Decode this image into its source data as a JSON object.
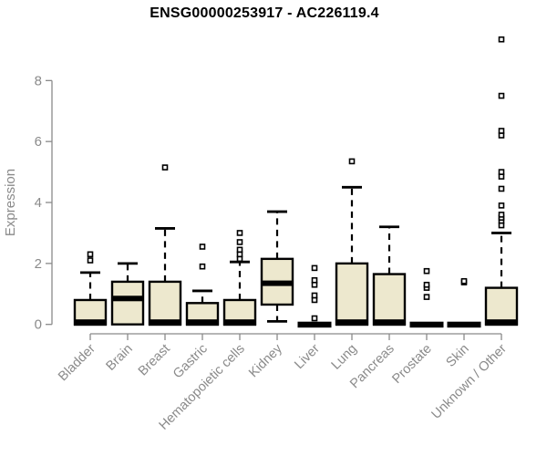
{
  "title": "ENSG00000253917 - AC226119.4",
  "colors": {
    "box_fill": "#ede8ce",
    "box_stroke": "#000000",
    "median": "#000000",
    "whisker": "#000000",
    "outlier_stroke": "#000000",
    "outlier_fill": "#ffffff",
    "axis": "#8a8a8a",
    "tick_label": "#8a8a8a",
    "title_color": "#000000",
    "background": "#ffffff"
  },
  "chart_data": {
    "type": "boxplot",
    "title": "ENSG00000253917 - AC226119.4",
    "xlabel": "",
    "ylabel": "Expression",
    "ylim": [
      0,
      9.5
    ],
    "yticks": [
      0,
      2,
      4,
      6,
      8
    ],
    "grid": false,
    "legend": "none",
    "categories": [
      "Bladder",
      "Brain",
      "Breast",
      "Gastric",
      "Hematopoietic cells",
      "Kidney",
      "Liver",
      "Lung",
      "Pancreas",
      "Prostate",
      "Skin",
      "Unknown / Other"
    ],
    "series": [
      {
        "name": "Bladder",
        "q1": 0,
        "median": 0,
        "q3": 0.8,
        "whisker_low": 0,
        "whisker_high": 1.7,
        "outliers": [
          2.1,
          2.3
        ]
      },
      {
        "name": "Brain",
        "q1": 0,
        "median": 0.85,
        "q3": 1.4,
        "whisker_low": 0,
        "whisker_high": 2.0,
        "outliers": []
      },
      {
        "name": "Breast",
        "q1": 0,
        "median": 0,
        "q3": 1.4,
        "whisker_low": 0,
        "whisker_high": 3.15,
        "outliers": [
          5.15
        ]
      },
      {
        "name": "Gastric",
        "q1": 0,
        "median": 0,
        "q3": 0.7,
        "whisker_low": 0,
        "whisker_high": 1.1,
        "outliers": [
          1.9,
          2.55
        ]
      },
      {
        "name": "Hematopoietic cells",
        "q1": 0,
        "median": 0,
        "q3": 0.8,
        "whisker_low": 0,
        "whisker_high": 2.05,
        "outliers": [
          2.15,
          2.3,
          2.45,
          2.7,
          3.0
        ]
      },
      {
        "name": "Kidney",
        "q1": 0.65,
        "median": 1.35,
        "q3": 2.15,
        "whisker_low": 0.1,
        "whisker_high": 3.7,
        "outliers": []
      },
      {
        "name": "Liver",
        "q1": 0,
        "median": 0,
        "q3": 0,
        "whisker_low": 0,
        "whisker_high": 0,
        "outliers": [
          0.2,
          0.8,
          0.95,
          1.3,
          1.45,
          1.85
        ]
      },
      {
        "name": "Lung",
        "q1": 0,
        "median": 0,
        "q3": 2.0,
        "whisker_low": 0,
        "whisker_high": 4.5,
        "outliers": [
          5.35
        ]
      },
      {
        "name": "Pancreas",
        "q1": 0,
        "median": 0,
        "q3": 1.65,
        "whisker_low": 0,
        "whisker_high": 3.2,
        "outliers": []
      },
      {
        "name": "Prostate",
        "q1": 0,
        "median": 0,
        "q3": 0,
        "whisker_low": 0,
        "whisker_high": 0,
        "outliers": [
          0.9,
          1.2,
          1.3,
          1.75
        ]
      },
      {
        "name": "Skin",
        "q1": 0,
        "median": 0,
        "q3": 0,
        "whisker_low": 0,
        "whisker_high": 0,
        "outliers": [
          1.38,
          1.42
        ]
      },
      {
        "name": "Unknown / Other",
        "q1": 0,
        "median": 0,
        "q3": 1.2,
        "whisker_low": 0,
        "whisker_high": 3.0,
        "outliers": [
          3.25,
          3.4,
          3.5,
          3.6,
          3.9,
          4.45,
          4.85,
          5.0,
          6.2,
          6.35,
          7.5,
          9.35
        ]
      }
    ]
  }
}
